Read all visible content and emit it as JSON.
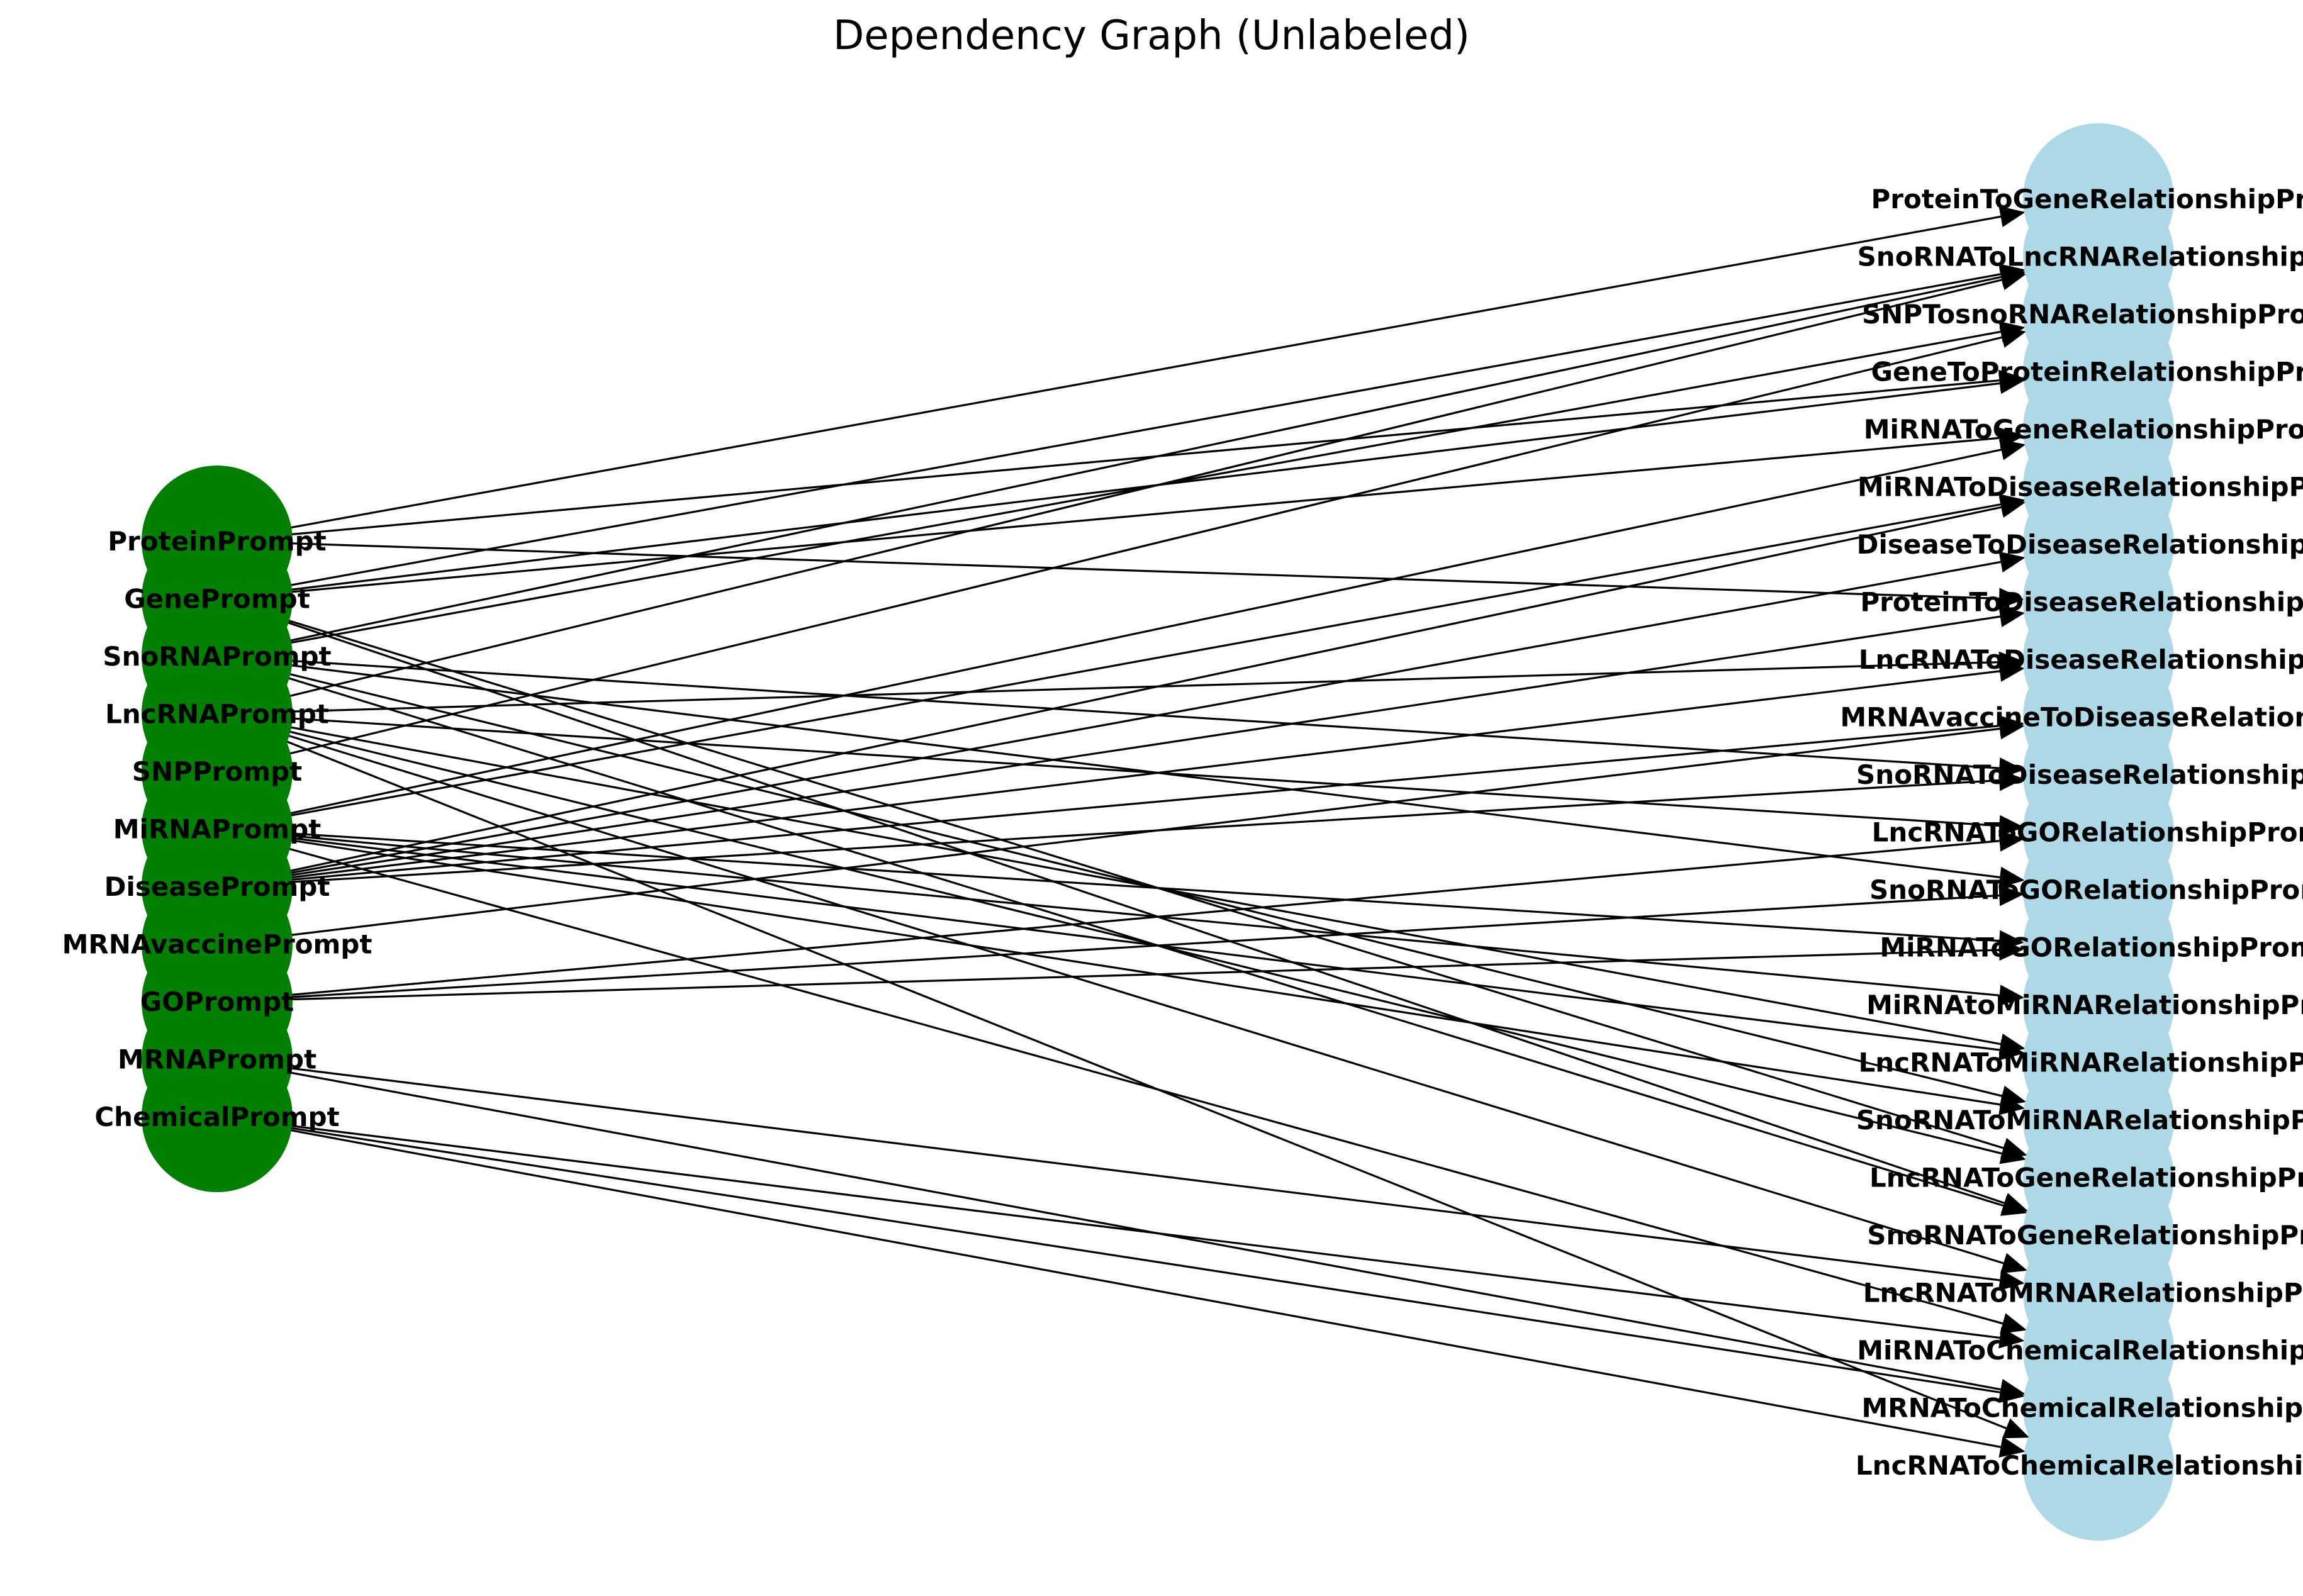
{
  "title": "Dependency Graph (Unlabeled)",
  "colors": {
    "source_node": "#008000",
    "target_node": "#add8e6",
    "edge": "#000000"
  },
  "source_nodes": [
    "ProteinPrompt",
    "GenePrompt",
    "SnoRNAPrompt",
    "LncRNAPrompt",
    "SNPPrompt",
    "MiRNAPrompt",
    "DiseasePrompt",
    "MRNAvaccinePrompt",
    "GOPrompt",
    "MRNAPrompt",
    "ChemicalPrompt"
  ],
  "target_nodes": [
    "ProteinToGeneRelationshipPro",
    "SnoRNAToLncRNARelationshipPr",
    "SNPTosnoRNARelationshipProm",
    "GeneToProteinRelationshipPro",
    "MiRNAToGeneRelationshipProm",
    "MiRNAToDiseaseRelationshipPro",
    "DiseaseToDiseaseRelationshipPr",
    "ProteinToDiseaseRelationshipPr",
    "LncRNAToDiseaseRelationshipPr",
    "MRNAvaccineToDiseaseRelationshi",
    "SnoRNAToDiseaseRelationshipPr",
    "LncRNAToGORelationshipProm",
    "SnoRNAToGORelationshipProm",
    "MiRNAToGORelationshipProm",
    "MiRNAtoMiRNARelationshipPro",
    "LncRNAToMiRNARelationshipPro",
    "SnoRNAToMiRNARelationshipPro",
    "LncRNAToGeneRelationshipPro",
    "SnoRNAToGeneRelationshipPro",
    "LncRNAToMRNARelationshipPro",
    "MiRNAToChemicalRelationshipPr",
    "MRNAToChemicalRelationshipPr",
    "LncRNAToChemicalRelationshipP"
  ],
  "edges": [
    [
      "ProteinPrompt",
      "ProteinToGeneRelationshipPro"
    ],
    [
      "ProteinPrompt",
      "GeneToProteinRelationshipPro"
    ],
    [
      "ProteinPrompt",
      "ProteinToDiseaseRelationshipPr"
    ],
    [
      "GenePrompt",
      "SnoRNAToLncRNARelationshipPr"
    ],
    [
      "GenePrompt",
      "GeneToProteinRelationshipPro"
    ],
    [
      "GenePrompt",
      "MiRNAToGeneRelationshipProm"
    ],
    [
      "GenePrompt",
      "LncRNAToGeneRelationshipPro"
    ],
    [
      "GenePrompt",
      "SnoRNAToGeneRelationshipPro"
    ],
    [
      "SnoRNAPrompt",
      "SnoRNAToLncRNARelationshipPr"
    ],
    [
      "SnoRNAPrompt",
      "SNPTosnoRNARelationshipProm"
    ],
    [
      "SnoRNAPrompt",
      "SnoRNAToDiseaseRelationshipPr"
    ],
    [
      "SnoRNAPrompt",
      "SnoRNAToGORelationshipProm"
    ],
    [
      "SnoRNAPrompt",
      "SnoRNAToMiRNARelationshipPro"
    ],
    [
      "SnoRNAPrompt",
      "SnoRNAToGeneRelationshipPro"
    ],
    [
      "LncRNAPrompt",
      "SnoRNAToLncRNARelationshipPr"
    ],
    [
      "LncRNAPrompt",
      "LncRNAToDiseaseRelationshipPr"
    ],
    [
      "LncRNAPrompt",
      "LncRNAToGORelationshipProm"
    ],
    [
      "LncRNAPrompt",
      "LncRNAToMiRNARelationshipPro"
    ],
    [
      "LncRNAPrompt",
      "LncRNAToGeneRelationshipPro"
    ],
    [
      "LncRNAPrompt",
      "LncRNAToMRNARelationshipPro"
    ],
    [
      "LncRNAPrompt",
      "LncRNAToChemicalRelationshipP"
    ],
    [
      "SNPPrompt",
      "SNPTosnoRNARelationshipProm"
    ],
    [
      "MiRNAPrompt",
      "MiRNAToGeneRelationshipProm"
    ],
    [
      "MiRNAPrompt",
      "MiRNAToDiseaseRelationshipPro"
    ],
    [
      "MiRNAPrompt",
      "MiRNAToGORelationshipProm"
    ],
    [
      "MiRNAPrompt",
      "MiRNAtoMiRNARelationshipPro"
    ],
    [
      "MiRNAPrompt",
      "LncRNAToMiRNARelationshipPro"
    ],
    [
      "MiRNAPrompt",
      "SnoRNAToMiRNARelationshipPro"
    ],
    [
      "MiRNAPrompt",
      "MiRNAToChemicalRelationshipPr"
    ],
    [
      "DiseasePrompt",
      "MiRNAToDiseaseRelationshipPro"
    ],
    [
      "DiseasePrompt",
      "DiseaseToDiseaseRelationshipPr"
    ],
    [
      "DiseasePrompt",
      "ProteinToDiseaseRelationshipPr"
    ],
    [
      "DiseasePrompt",
      "LncRNAToDiseaseRelationshipPr"
    ],
    [
      "DiseasePrompt",
      "MRNAvaccineToDiseaseRelationshi"
    ],
    [
      "DiseasePrompt",
      "SnoRNAToDiseaseRelationshipPr"
    ],
    [
      "MRNAvaccinePrompt",
      "MRNAvaccineToDiseaseRelationshi"
    ],
    [
      "GOPrompt",
      "LncRNAToGORelationshipProm"
    ],
    [
      "GOPrompt",
      "SnoRNAToGORelationshipProm"
    ],
    [
      "GOPrompt",
      "MiRNAToGORelationshipProm"
    ],
    [
      "MRNAPrompt",
      "LncRNAToMRNARelationshipPro"
    ],
    [
      "MRNAPrompt",
      "MRNAToChemicalRelationshipPr"
    ],
    [
      "ChemicalPrompt",
      "MiRNAToChemicalRelationshipPr"
    ],
    [
      "ChemicalPrompt",
      "MRNAToChemicalRelationshipPr"
    ],
    [
      "ChemicalPrompt",
      "LncRNAToChemicalRelationshipP"
    ]
  ]
}
